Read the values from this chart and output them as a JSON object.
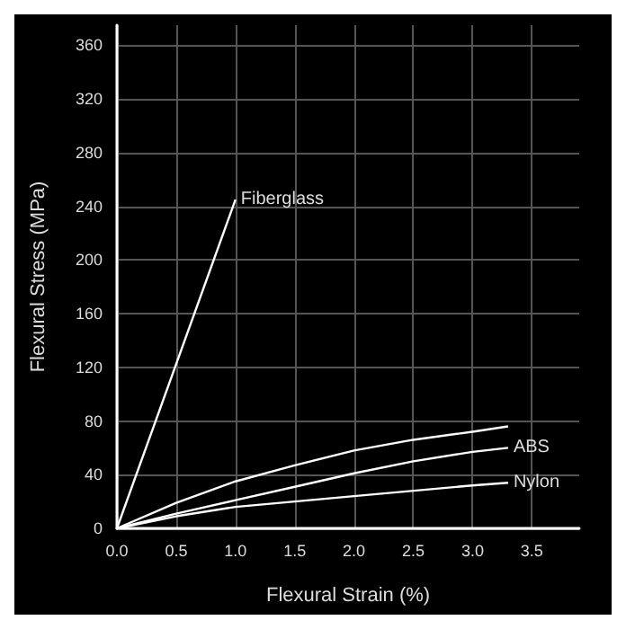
{
  "chart_data": {
    "type": "line",
    "xlabel": "Flexural Strain (%)",
    "ylabel": "Flexural Stress (MPa)",
    "series": [
      {
        "name": "Fiberglass",
        "color": "#ffffff",
        "x": [
          0,
          1.0
        ],
        "values": [
          0,
          245
        ]
      },
      {
        "color": "#ffffff",
        "x": [
          0,
          0.5,
          1.0,
          1.5,
          2.0,
          2.5,
          3.0,
          3.3
        ],
        "values": [
          0,
          19,
          35,
          47,
          58,
          66,
          72,
          76
        ]
      },
      {
        "name": "ABS",
        "color": "#ffffff",
        "x": [
          0,
          0.5,
          1.0,
          1.5,
          2.0,
          2.5,
          3.0,
          3.3
        ],
        "values": [
          0,
          11,
          21,
          31,
          41,
          50,
          57,
          60
        ]
      },
      {
        "name": "Nylon",
        "color": "#ffffff",
        "x": [
          0,
          0.5,
          1.0,
          2.0,
          3.0,
          3.3
        ],
        "values": [
          0,
          9,
          16,
          24,
          32,
          34
        ]
      }
    ],
    "xlim": [
      0,
      3.9
    ],
    "xticks": [
      {
        "value": 0,
        "label": "0.0"
      },
      {
        "value": 0.5,
        "label": "0.5"
      },
      {
        "value": 1,
        "label": "1.0"
      },
      {
        "value": 1.5,
        "label": "1.5"
      },
      {
        "value": 2,
        "label": "2.0"
      },
      {
        "value": 2.5,
        "label": "2.5"
      },
      {
        "value": 3,
        "label": "3.0"
      },
      {
        "value": 3.5,
        "label": "3.5"
      }
    ],
    "ylim": [
      0,
      375
    ],
    "yticks": [
      0,
      40,
      80,
      120,
      160,
      200,
      240,
      280,
      320,
      360
    ],
    "grid": true,
    "legend": false,
    "marker": "none",
    "line_style": "solid"
  }
}
